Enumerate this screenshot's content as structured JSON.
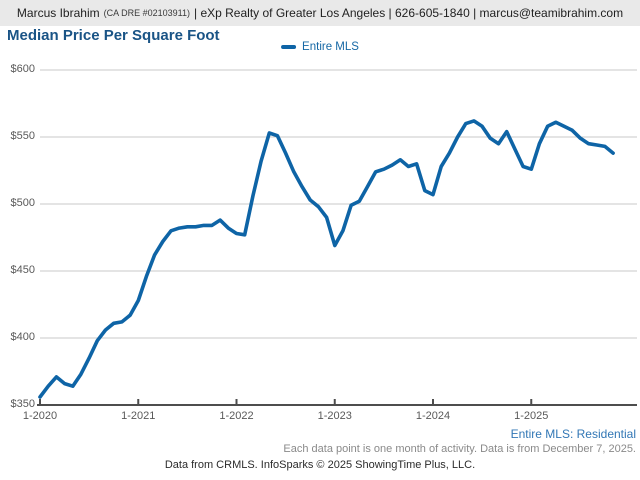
{
  "header": {
    "agent_name": "Marcus Ibrahim",
    "dre": "(CA DRE #02103911)",
    "contact": "| eXp Realty of Greater Los Angeles | 626-605-1840 | marcus@teamibrahim.com"
  },
  "chart": {
    "title": "Median Price Per Square Foot",
    "legend_label": "Entire MLS"
  },
  "chart_data": {
    "type": "line",
    "title": "Median Price Per Square Foot",
    "legend_position": "top-center",
    "grid": "horizontal",
    "ylim": [
      350,
      600
    ],
    "y_tick_values": [
      600,
      550,
      500,
      450,
      400,
      350
    ],
    "y_tick_labels": [
      "$600",
      "$550",
      "$500",
      "$450",
      "$400",
      "$350"
    ],
    "x_tick_labels": [
      "1-2020",
      "1-2021",
      "1-2022",
      "1-2023",
      "1-2024",
      "1-2025"
    ],
    "x_range": {
      "start": "2020-01",
      "end": "2025-11",
      "step": "1 month"
    },
    "series": [
      {
        "name": "Entire MLS",
        "color": "#0e64a6",
        "values": [
          356,
          364,
          371,
          366,
          364,
          373,
          385,
          398,
          406,
          411,
          412,
          417,
          428,
          446,
          462,
          472,
          480,
          482,
          483,
          483,
          484,
          484,
          488,
          482,
          478,
          477,
          506,
          532,
          553,
          551,
          538,
          524,
          513,
          503,
          498,
          490,
          469,
          480,
          499,
          502,
          513,
          524,
          526,
          529,
          533,
          528,
          530,
          510,
          507,
          528,
          538,
          550,
          560,
          562,
          558,
          549,
          545,
          554,
          541,
          528,
          526,
          545,
          558,
          561,
          558,
          555,
          549,
          545,
          544,
          543,
          538
        ]
      }
    ]
  },
  "footer": {
    "series_note": "Entire MLS: Residential",
    "data_note": "Each data point is one month of activity. Data is from December 7, 2025.",
    "credit": "Data from CRMLS. InfoSparks © 2025 ShowingTime Plus, LLC."
  },
  "colors": {
    "line": "#0e64a6",
    "title": "#1a5486",
    "header_background": "#e9e9e9",
    "gridline": "#c9c9c9",
    "axis": "#4d4d4d",
    "axis_label": "#595959",
    "series_note": "#3277b5",
    "data_note": "#8a8a8a"
  }
}
